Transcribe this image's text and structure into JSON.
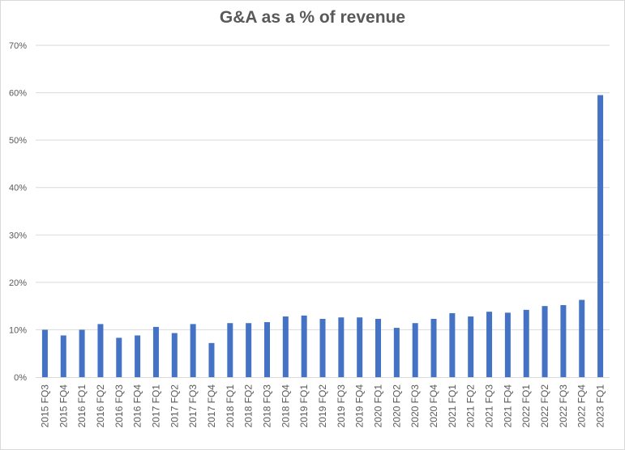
{
  "chart_data": {
    "type": "bar",
    "title": "G&A as a % of revenue",
    "xlabel": "",
    "ylabel": "",
    "ylim": [
      0,
      70
    ],
    "yticks": [
      "0%",
      "10%",
      "20%",
      "30%",
      "40%",
      "50%",
      "60%",
      "70%"
    ],
    "grid": true,
    "legend": "none",
    "bar_color": "#4472c4",
    "categories": [
      "2015 FQ3",
      "2015 FQ4",
      "2016 FQ1",
      "2016 FQ2",
      "2016 FQ3",
      "2016 FQ4",
      "2017 FQ1",
      "2017 FQ2",
      "2017 FQ3",
      "2017 FQ4",
      "2018 FQ1",
      "2018 FQ2",
      "2018 FQ3",
      "2018 FQ4",
      "2019 FQ1",
      "2019 FQ2",
      "2019 FQ3",
      "2019 FQ4",
      "2020 FQ1",
      "2020 FQ2",
      "2020 FQ3",
      "2020 FQ4",
      "2021 FQ1",
      "2021 FQ2",
      "2021 FQ3",
      "2021 FQ4",
      "2022 FQ1",
      "2022 FQ2",
      "2022 FQ3",
      "2022 FQ4",
      "2023 FQ1"
    ],
    "values": [
      10.0,
      8.8,
      10.0,
      11.2,
      8.3,
      8.8,
      10.6,
      9.3,
      11.2,
      7.2,
      11.4,
      11.4,
      11.6,
      12.8,
      13.0,
      12.3,
      12.6,
      12.6,
      12.3,
      10.4,
      11.4,
      12.3,
      13.5,
      12.8,
      13.8,
      13.6,
      14.2,
      15.0,
      15.2,
      16.3,
      59.5
    ]
  }
}
